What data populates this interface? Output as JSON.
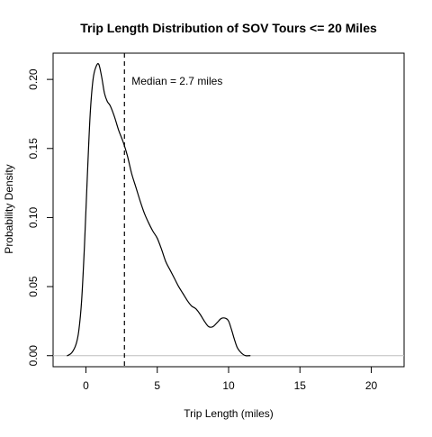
{
  "chart_data": {
    "type": "line",
    "title": "Trip Length Distribution of SOV Tours <= 20 Miles",
    "xlabel": "Trip Length (miles)",
    "ylabel": "Probability Density",
    "xlim": [
      -2.3,
      22.3
    ],
    "ylim": [
      -0.008,
      0.219
    ],
    "x_ticks": [
      0,
      5,
      10,
      15,
      20
    ],
    "x_tick_labels": [
      "0",
      "5",
      "10",
      "15",
      "20"
    ],
    "y_ticks": [
      0.0,
      0.05,
      0.1,
      0.15,
      0.2
    ],
    "y_tick_labels": [
      "0.00",
      "0.05",
      "0.10",
      "0.15",
      "0.20"
    ],
    "grid": false,
    "legend": "none",
    "baseline": {
      "y": 0,
      "color": "#bebebe"
    },
    "median": {
      "x": 2.7,
      "label": "Median = 2.7 miles",
      "line_style": "dashed"
    },
    "series": [
      {
        "color": "#000000",
        "x": [
          -1.3,
          -1.0,
          -0.7,
          -0.5,
          -0.3,
          -0.1,
          0.1,
          0.3,
          0.5,
          0.7,
          0.9,
          1.1,
          1.3,
          1.5,
          1.7,
          2.0,
          2.3,
          2.6,
          2.9,
          3.2,
          3.5,
          3.8,
          4.1,
          4.4,
          4.7,
          5.0,
          5.3,
          5.6,
          5.9,
          6.2,
          6.5,
          6.8,
          7.1,
          7.4,
          7.7,
          8.0,
          8.3,
          8.6,
          8.9,
          9.2,
          9.5,
          9.8,
          10.0,
          10.2,
          10.4,
          10.6,
          10.8,
          11.0,
          11.2,
          11.5
        ],
        "y": [
          0.0,
          0.002,
          0.008,
          0.018,
          0.04,
          0.08,
          0.13,
          0.175,
          0.2,
          0.209,
          0.211,
          0.202,
          0.19,
          0.184,
          0.181,
          0.173,
          0.163,
          0.155,
          0.145,
          0.132,
          0.122,
          0.112,
          0.103,
          0.096,
          0.09,
          0.085,
          0.077,
          0.068,
          0.062,
          0.056,
          0.05,
          0.045,
          0.04,
          0.036,
          0.034,
          0.03,
          0.025,
          0.021,
          0.021,
          0.024,
          0.027,
          0.027,
          0.025,
          0.019,
          0.012,
          0.006,
          0.003,
          0.001,
          0.0,
          0.0
        ]
      }
    ]
  }
}
